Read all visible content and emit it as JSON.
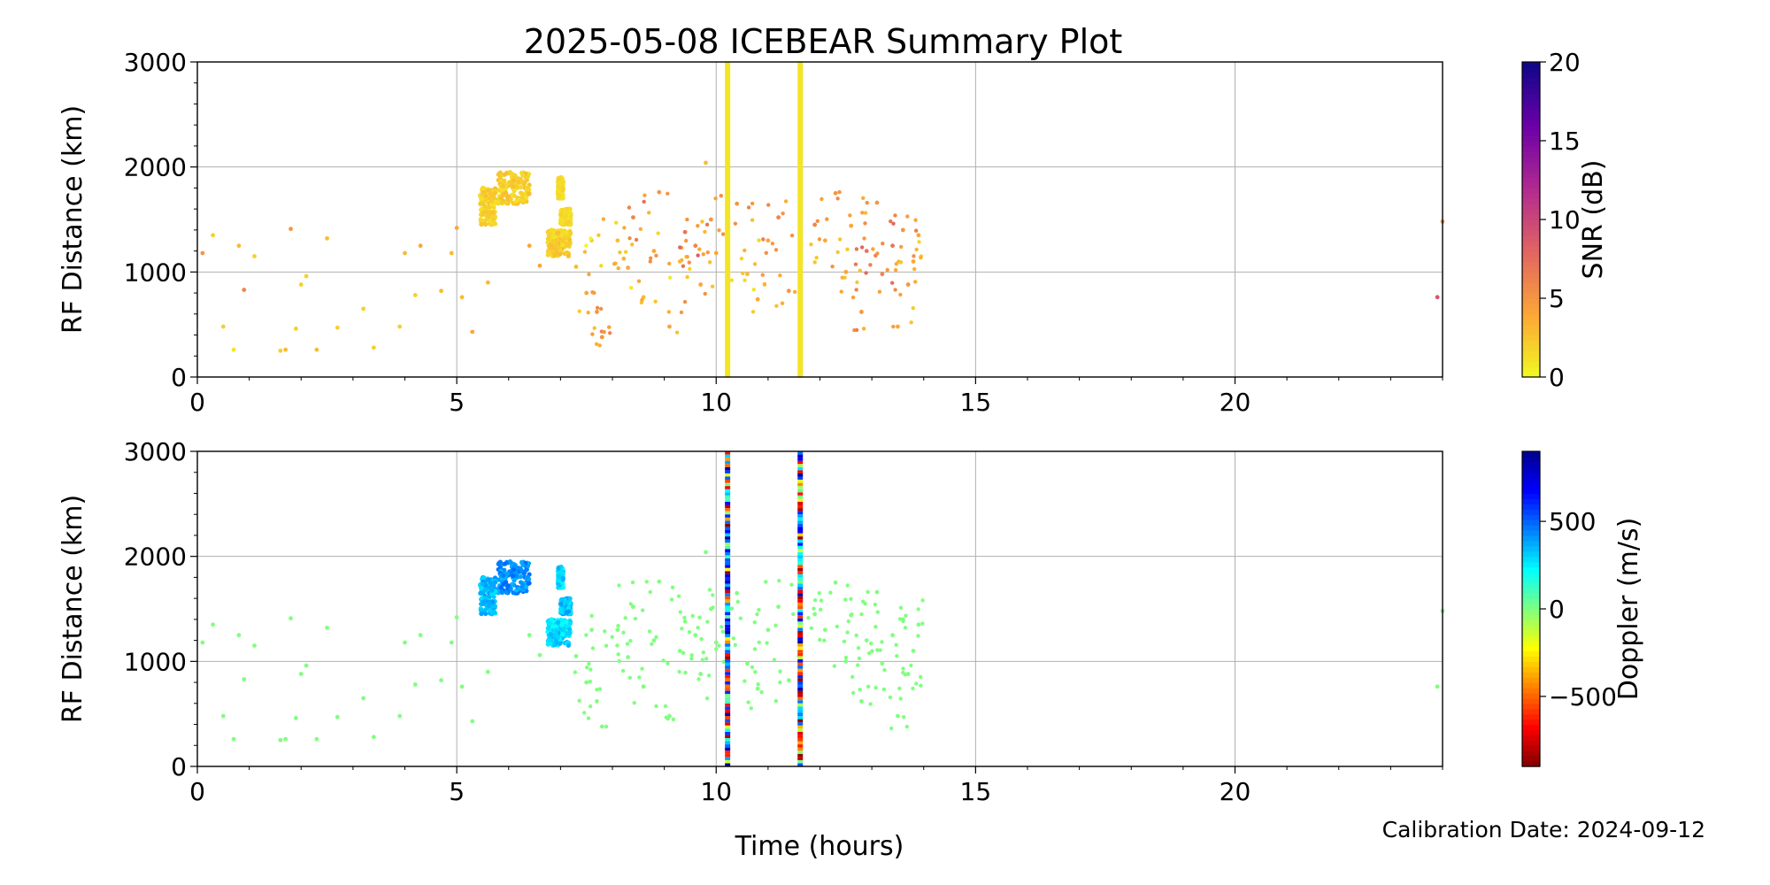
{
  "figure": {
    "title": "2025-05-08 ICEBEAR Summary Plot",
    "xlabel": "Time (hours)",
    "calibration_note": "Calibration Date: 2024-09-12"
  },
  "chart_data": [
    {
      "type": "scatter",
      "panel": "top",
      "ylabel": "RF Distance (km)",
      "xlim": [
        0,
        24
      ],
      "ylim": [
        0,
        3000
      ],
      "xticks": [
        0,
        5,
        10,
        15,
        20
      ],
      "yticks": [
        0,
        1000,
        2000,
        3000
      ],
      "grid": true,
      "color_by": "snr",
      "colorbar": {
        "label": "SNR (dB)",
        "range": [
          0,
          20
        ],
        "ticks": [
          0,
          5,
          10,
          15,
          20
        ],
        "colormap": "plasma_r",
        "colors": [
          "#f0f921",
          "#fca636",
          "#e16462",
          "#b12a90",
          "#6a00a8",
          "#0d0887"
        ]
      },
      "vertical_bands": [
        {
          "x": 10.22,
          "y": [
            0,
            3000
          ]
        },
        {
          "x": 11.62,
          "y": [
            0,
            3000
          ]
        }
      ],
      "clusters": [
        {
          "x": [
            5.8,
            6.4
          ],
          "y": [
            1650,
            1950
          ],
          "snr": [
            1,
            3
          ]
        },
        {
          "x": [
            6.75,
            7.2
          ],
          "y": [
            1150,
            1400
          ],
          "snr": [
            1,
            3
          ]
        },
        {
          "x": [
            5.45,
            5.75
          ],
          "y": [
            1450,
            1800
          ],
          "snr": [
            1,
            3
          ]
        },
        {
          "x": [
            6.95,
            7.05
          ],
          "y": [
            1700,
            1900
          ],
          "snr": [
            1,
            2
          ]
        },
        {
          "x": [
            7.0,
            7.2
          ],
          "y": [
            1450,
            1600
          ],
          "snr": [
            1,
            2
          ]
        }
      ],
      "points": [
        [
          0.1,
          1180,
          5
        ],
        [
          0.3,
          1350,
          2
        ],
        [
          0.5,
          480,
          2
        ],
        [
          0.7,
          260,
          1
        ],
        [
          0.8,
          1250,
          3
        ],
        [
          0.9,
          830,
          6
        ],
        [
          1.1,
          1150,
          2
        ],
        [
          1.6,
          250,
          2
        ],
        [
          1.7,
          260,
          3
        ],
        [
          1.8,
          1410,
          5
        ],
        [
          1.9,
          460,
          2
        ],
        [
          2.0,
          880,
          2
        ],
        [
          2.1,
          960,
          2
        ],
        [
          2.3,
          260,
          3
        ],
        [
          2.5,
          1320,
          3
        ],
        [
          2.7,
          470,
          2
        ],
        [
          3.2,
          650,
          2
        ],
        [
          3.4,
          280,
          2
        ],
        [
          3.9,
          480,
          2
        ],
        [
          4.0,
          1180,
          3
        ],
        [
          4.2,
          780,
          2
        ],
        [
          4.3,
          1250,
          4
        ],
        [
          4.7,
          820,
          3
        ],
        [
          4.9,
          1180,
          3
        ],
        [
          5.0,
          1420,
          4
        ],
        [
          5.1,
          760,
          3
        ],
        [
          5.3,
          430,
          4
        ],
        [
          5.6,
          900,
          3
        ],
        [
          6.4,
          1250,
          4
        ],
        [
          6.6,
          1060,
          4
        ],
        [
          7.3,
          1050,
          3
        ],
        [
          7.5,
          800,
          4
        ],
        [
          7.6,
          1300,
          2
        ],
        [
          7.7,
          620,
          5
        ],
        [
          7.8,
          380,
          5
        ],
        [
          8.1,
          1300,
          3
        ],
        [
          8.3,
          1040,
          4
        ],
        [
          8.4,
          1520,
          6
        ],
        [
          8.6,
          760,
          3
        ],
        [
          8.8,
          1200,
          4
        ],
        [
          8.9,
          1760,
          5
        ],
        [
          9.1,
          480,
          4
        ],
        [
          9.3,
          1100,
          3
        ],
        [
          9.4,
          1380,
          7
        ],
        [
          9.6,
          1250,
          6
        ],
        [
          9.7,
          880,
          4
        ],
        [
          9.8,
          2040,
          3
        ],
        [
          9.9,
          1500,
          5
        ],
        [
          10.0,
          1180,
          4
        ],
        [
          10.4,
          1650,
          5
        ],
        [
          10.6,
          980,
          3
        ],
        [
          10.8,
          740,
          4
        ],
        [
          11.0,
          1300,
          4
        ],
        [
          11.2,
          1520,
          6
        ],
        [
          11.4,
          820,
          5
        ],
        [
          11.9,
          1450,
          6
        ],
        [
          12.1,
          1300,
          4
        ],
        [
          12.3,
          1750,
          5
        ],
        [
          12.5,
          1000,
          4
        ],
        [
          12.6,
          1440,
          4
        ],
        [
          12.8,
          620,
          5
        ],
        [
          12.9,
          1200,
          7
        ],
        [
          13.1,
          1660,
          5
        ],
        [
          13.2,
          980,
          6
        ],
        [
          13.4,
          1250,
          7
        ],
        [
          13.5,
          480,
          4
        ],
        [
          13.6,
          1400,
          5
        ],
        [
          13.7,
          880,
          5
        ],
        [
          13.8,
          1100,
          4
        ],
        [
          13.9,
          1350,
          4
        ],
        [
          23.9,
          760,
          9
        ],
        [
          24.0,
          1480,
          5
        ]
      ]
    },
    {
      "type": "scatter",
      "panel": "bottom",
      "ylabel": "RF Distance (km)",
      "xlim": [
        0,
        24
      ],
      "ylim": [
        0,
        3000
      ],
      "xticks": [
        0,
        5,
        10,
        15,
        20
      ],
      "yticks": [
        0,
        1000,
        2000,
        3000
      ],
      "grid": true,
      "color_by": "doppler",
      "colorbar": {
        "label": "Doppler (m/s)",
        "range": [
          -900,
          900
        ],
        "ticks": [
          -500,
          0,
          500
        ],
        "colormap": "jet_r",
        "colors": [
          "#7f0000",
          "#ff0000",
          "#ff8000",
          "#ffff00",
          "#80ff80",
          "#00ffff",
          "#0080ff",
          "#0000ff",
          "#00008f"
        ]
      },
      "vertical_bands": [
        {
          "x": 10.22,
          "y": [
            0,
            3000
          ],
          "doppler": "mixed"
        },
        {
          "x": 11.62,
          "y": [
            0,
            3000
          ],
          "doppler": "mixed"
        }
      ],
      "clusters": [
        {
          "x": [
            5.8,
            6.4
          ],
          "y": [
            1650,
            1950
          ],
          "doppler": 420
        },
        {
          "x": [
            6.75,
            7.2
          ],
          "y": [
            1150,
            1400
          ],
          "doppler": 280
        },
        {
          "x": [
            5.45,
            5.75
          ],
          "y": [
            1450,
            1800
          ],
          "doppler": 350
        },
        {
          "x": [
            6.95,
            7.05
          ],
          "y": [
            1700,
            1900
          ],
          "doppler": 300
        },
        {
          "x": [
            7.0,
            7.2
          ],
          "y": [
            1450,
            1600
          ],
          "doppler": 330
        }
      ],
      "points_doppler": 0
    }
  ]
}
